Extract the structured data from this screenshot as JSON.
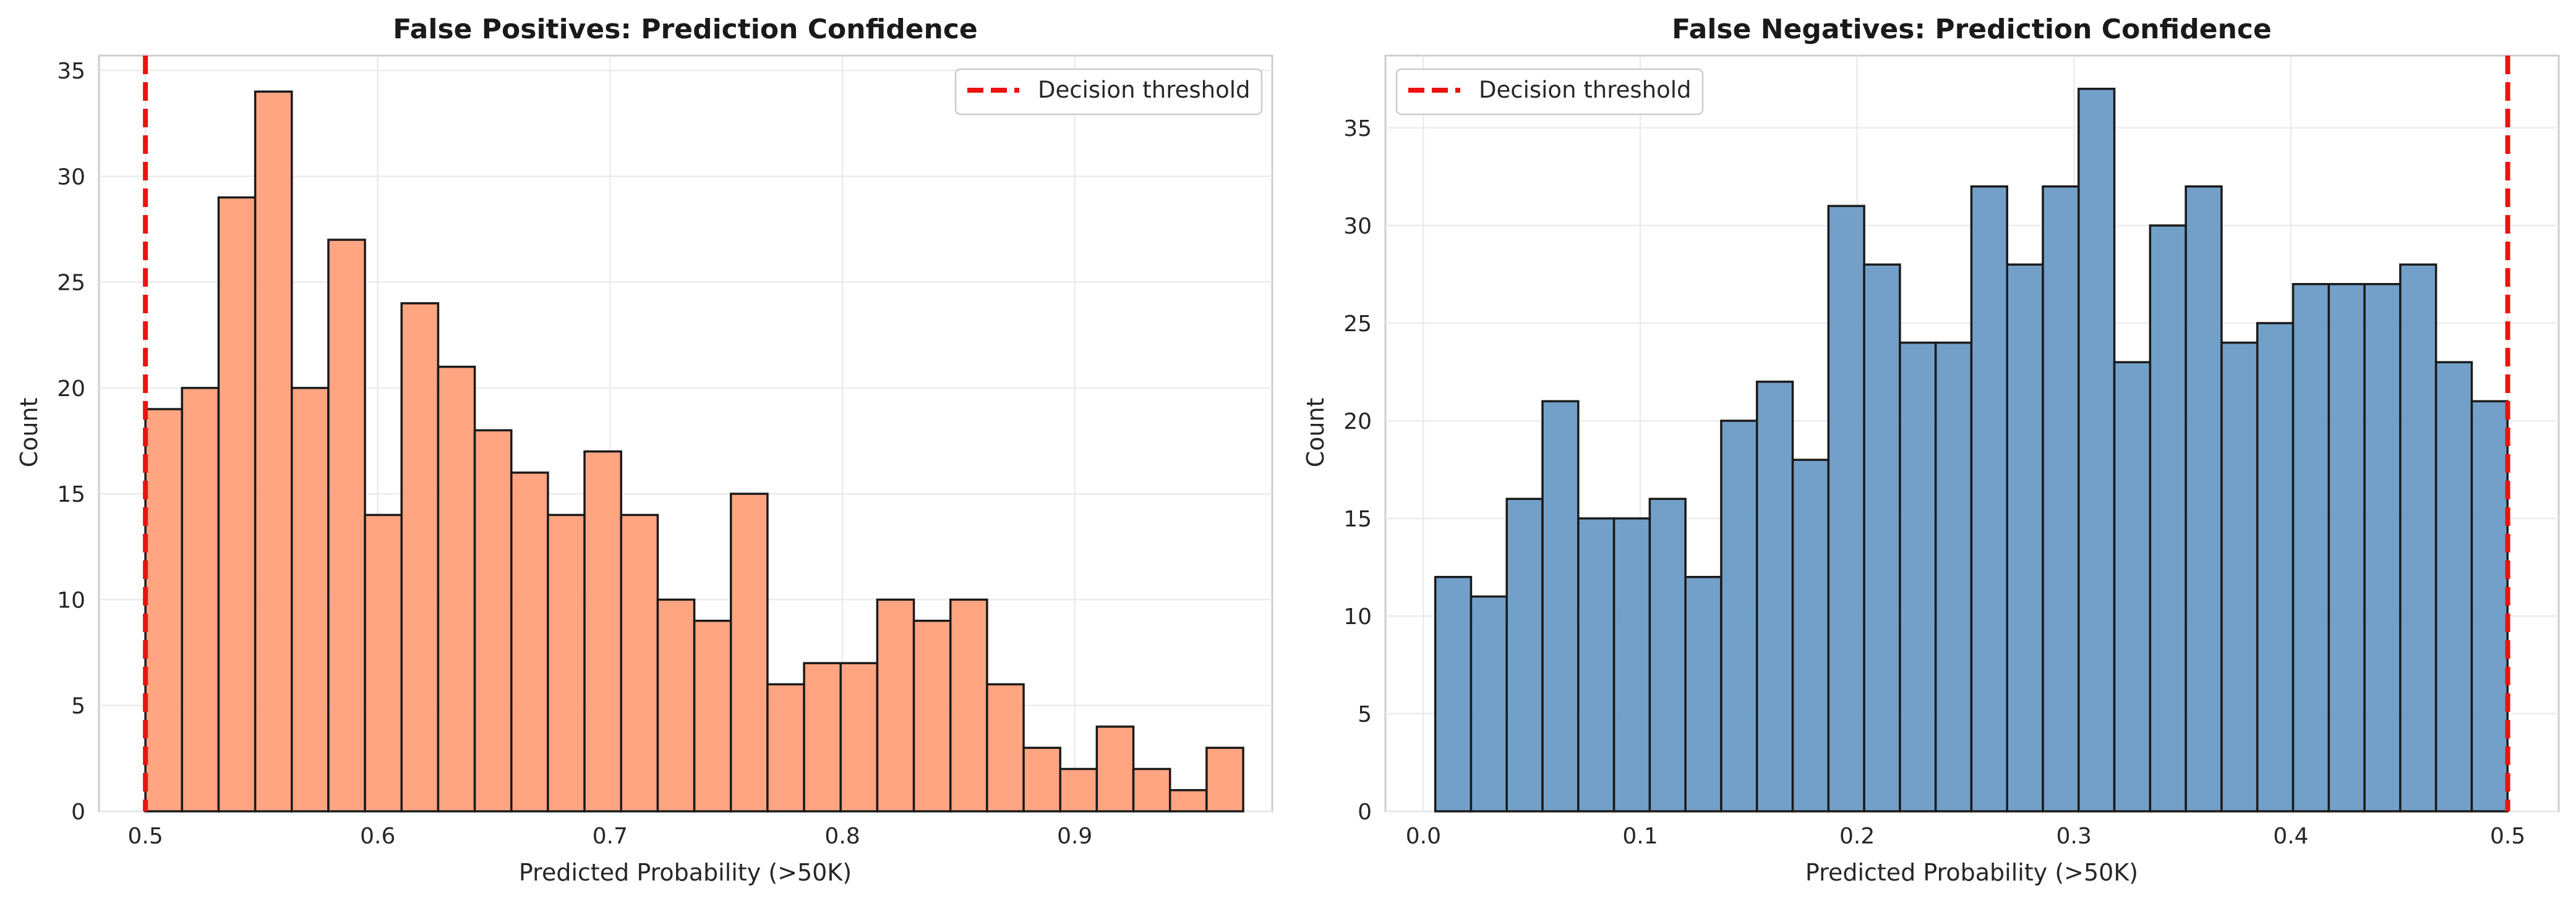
{
  "chart_data": [
    {
      "type": "bar",
      "title": "False Positives: Prediction Confidence",
      "xlabel": "Predicted Probability (>50K)",
      "ylabel": "Count",
      "xlim": [
        0.48,
        0.985
      ],
      "ylim": [
        0,
        35.7
      ],
      "xticks": [
        0.5,
        0.6,
        0.7,
        0.8,
        0.9
      ],
      "xtick_labels": [
        "0.5",
        "0.6",
        "0.7",
        "0.8",
        "0.9"
      ],
      "yticks": [
        0,
        5,
        10,
        15,
        20,
        25,
        30,
        35
      ],
      "ytick_labels": [
        "0",
        "5",
        "10",
        "15",
        "20",
        "25",
        "30",
        "35"
      ],
      "bin_start": 0.5,
      "bin_width": 0.01575,
      "values": [
        19,
        20,
        29,
        34,
        20,
        27,
        14,
        24,
        21,
        18,
        16,
        14,
        17,
        14,
        10,
        9,
        15,
        6,
        7,
        7,
        10,
        9,
        10,
        6,
        3,
        2,
        4,
        2,
        1,
        3
      ],
      "bar_color": "#FFA07A",
      "threshold": 0.5,
      "threshold_color": "#ee1111",
      "legend": {
        "label": "Decision threshold",
        "position": "top-right"
      },
      "grid": true
    },
    {
      "type": "bar",
      "title": "False Negatives: Prediction Confidence",
      "xlabel": "Predicted Probability (>50K)",
      "ylabel": "Count",
      "xlim": [
        -0.0175,
        0.5235
      ],
      "ylim": [
        0,
        38.7
      ],
      "xticks": [
        0.0,
        0.1,
        0.2,
        0.3,
        0.4,
        0.5
      ],
      "xtick_labels": [
        "0.0",
        "0.1",
        "0.2",
        "0.3",
        "0.4",
        "0.5"
      ],
      "yticks": [
        0,
        5,
        10,
        15,
        20,
        25,
        30,
        35
      ],
      "ytick_labels": [
        "0",
        "5",
        "10",
        "15",
        "20",
        "25",
        "30",
        "35"
      ],
      "bin_start": 0.0055,
      "bin_width": 0.01648,
      "values": [
        12,
        11,
        16,
        21,
        15,
        15,
        16,
        12,
        20,
        22,
        18,
        31,
        28,
        24,
        24,
        32,
        28,
        32,
        37,
        23,
        30,
        32,
        24,
        25,
        27,
        27,
        27,
        28,
        23,
        21
      ],
      "bar_color": "#6b9bc5",
      "threshold": 0.5,
      "threshold_color": "#ee1111",
      "legend": {
        "label": "Decision threshold",
        "position": "top-left"
      },
      "grid": true
    }
  ]
}
